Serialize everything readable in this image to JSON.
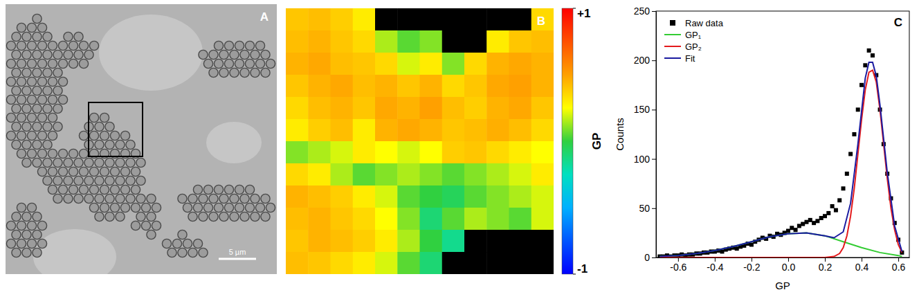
{
  "chart_data": [
    {
      "type": "image",
      "panel": "A",
      "scale_bar": {
        "label": "5 µm"
      }
    },
    {
      "type": "heatmap",
      "panel": "B",
      "cells": [
        [
          0.4,
          0.42,
          0.38,
          0.3,
          null,
          null,
          null,
          null,
          null,
          null,
          null,
          0.35
        ],
        [
          0.42,
          0.45,
          0.4,
          0.35,
          0.15,
          0.05,
          0.1,
          null,
          null,
          0.3,
          0.4,
          0.42
        ],
        [
          0.45,
          0.48,
          0.42,
          0.4,
          0.35,
          0.2,
          0.3,
          0.1,
          0.35,
          0.45,
          0.48,
          0.45
        ],
        [
          0.4,
          0.45,
          0.48,
          0.42,
          0.45,
          0.4,
          0.45,
          0.35,
          0.4,
          0.48,
          0.5,
          0.45
        ],
        [
          0.35,
          0.42,
          0.45,
          0.4,
          0.48,
          0.45,
          0.5,
          0.42,
          0.38,
          0.45,
          0.48,
          0.4
        ],
        [
          0.3,
          0.38,
          0.42,
          0.3,
          0.45,
          0.48,
          0.45,
          0.4,
          0.42,
          0.46,
          0.42,
          0.35
        ],
        [
          0.1,
          0.15,
          0.2,
          0.3,
          0.25,
          0.2,
          0.25,
          0.38,
          0.4,
          0.35,
          0.3,
          0.25
        ],
        [
          0.35,
          0.3,
          0.15,
          0.05,
          0.1,
          0.15,
          0.1,
          0.05,
          0.1,
          0.15,
          0.2,
          0.3
        ],
        [
          0.45,
          0.42,
          0.38,
          0.3,
          0.2,
          0.05,
          0.0,
          -0.05,
          0.05,
          0.1,
          0.15,
          0.2
        ],
        [
          0.42,
          0.45,
          0.4,
          0.35,
          0.25,
          0.1,
          -0.1,
          0.05,
          0.15,
          0.1,
          0.05,
          0.2
        ],
        [
          0.4,
          0.45,
          0.42,
          0.38,
          0.3,
          0.15,
          0.0,
          -0.15,
          null,
          null,
          null,
          null
        ],
        [
          0.42,
          0.4,
          0.35,
          0.3,
          0.2,
          0.05,
          -0.1,
          null,
          null,
          null,
          null,
          null
        ]
      ],
      "colorbar": {
        "label": "GP",
        "range": [
          -1,
          1
        ],
        "ticks": [
          {
            "value": 1,
            "label": "+1"
          },
          -1
        ],
        "colors": [
          "#0000ff",
          "#0055ff",
          "#00b0ff",
          "#00e0c0",
          "#30d040",
          "#ffff00",
          "#ffa000",
          "#ff5000",
          "#ff0000"
        ]
      }
    },
    {
      "type": "scatter",
      "panel": "C",
      "x_label": "GP",
      "y_label": "Counts",
      "xlim": [
        -0.72,
        0.66
      ],
      "ylim": [
        0,
        250
      ],
      "xticks": [
        -0.6,
        -0.4,
        -0.2,
        {
          "value": 0,
          "label": "0.0"
        },
        0.2,
        0.4,
        0.6
      ],
      "yticks": [
        0,
        50,
        100,
        150,
        200,
        250
      ],
      "legend": "upper left",
      "series": [
        {
          "name": "Raw data",
          "type": "scatter",
          "marker": "square",
          "color": "#000000",
          "x": [
            -0.7,
            -0.68,
            -0.66,
            -0.64,
            -0.62,
            -0.6,
            -0.58,
            -0.56,
            -0.54,
            -0.52,
            -0.5,
            -0.48,
            -0.46,
            -0.44,
            -0.42,
            -0.4,
            -0.38,
            -0.36,
            -0.34,
            -0.32,
            -0.3,
            -0.28,
            -0.26,
            -0.24,
            -0.22,
            -0.2,
            -0.18,
            -0.16,
            -0.14,
            -0.12,
            -0.1,
            -0.08,
            -0.06,
            -0.04,
            -0.02,
            0.0,
            0.02,
            0.04,
            0.06,
            0.08,
            0.1,
            0.12,
            0.14,
            0.16,
            0.18,
            0.2,
            0.22,
            0.24,
            0.26,
            0.28,
            0.3,
            0.32,
            0.34,
            0.36,
            0.38,
            0.4,
            0.42,
            0.44,
            0.46,
            0.48,
            0.5,
            0.52,
            0.54,
            0.56,
            0.58,
            0.6,
            0.62
          ],
          "values": [
            1,
            1,
            2,
            1,
            2,
            2,
            3,
            2,
            3,
            3,
            4,
            4,
            5,
            5,
            6,
            6,
            7,
            6,
            8,
            9,
            10,
            9,
            11,
            12,
            14,
            13,
            16,
            18,
            20,
            19,
            22,
            21,
            24,
            23,
            25,
            27,
            30,
            28,
            32,
            34,
            36,
            38,
            35,
            37,
            40,
            42,
            45,
            52,
            48,
            58,
            70,
            85,
            105,
            125,
            150,
            175,
            195,
            210,
            205,
            185,
            150,
            115,
            85,
            60,
            35,
            18,
            5
          ]
        },
        {
          "name": "GP₁",
          "type": "line",
          "color": "#33cc33",
          "x": [
            -0.7,
            -0.6,
            -0.5,
            -0.4,
            -0.3,
            -0.2,
            -0.1,
            0.0,
            0.1,
            0.2,
            0.3,
            0.4,
            0.5,
            0.6,
            0.62
          ],
          "values": [
            1,
            2,
            4,
            7,
            11,
            16,
            21,
            24,
            25,
            22,
            16,
            10,
            5,
            2,
            1
          ]
        },
        {
          "name": "GP₂",
          "type": "line",
          "color": "#e31a1c",
          "x": [
            -0.7,
            0.2,
            0.25,
            0.28,
            0.3,
            0.32,
            0.34,
            0.36,
            0.38,
            0.4,
            0.42,
            0.44,
            0.46,
            0.48,
            0.5,
            0.52,
            0.54,
            0.56,
            0.58,
            0.6,
            0.62
          ],
          "values": [
            0,
            0,
            1,
            4,
            10,
            22,
            42,
            70,
            105,
            140,
            170,
            188,
            190,
            178,
            150,
            115,
            80,
            50,
            28,
            13,
            5
          ]
        },
        {
          "name": "Fit",
          "type": "line",
          "color": "#1a1aa0",
          "x": [
            -0.7,
            -0.6,
            -0.5,
            -0.4,
            -0.3,
            -0.2,
            -0.1,
            0.0,
            0.1,
            0.2,
            0.25,
            0.3,
            0.34,
            0.38,
            0.42,
            0.44,
            0.46,
            0.48,
            0.5,
            0.54,
            0.58,
            0.62
          ],
          "values": [
            1,
            2,
            4,
            7,
            11,
            16,
            21,
            24,
            25,
            22,
            20,
            26,
            55,
            115,
            182,
            198,
            198,
            184,
            155,
            86,
            32,
            6
          ]
        }
      ]
    }
  ]
}
